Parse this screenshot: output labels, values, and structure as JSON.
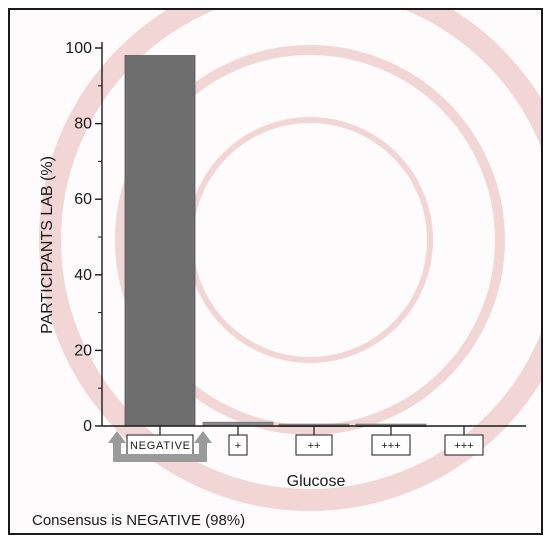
{
  "chart_data": {
    "type": "bar",
    "categories": [
      "NEGATIVE",
      "+",
      "++",
      "+++",
      "+++"
    ],
    "values": [
      98,
      1,
      0.5,
      0.5,
      0
    ],
    "ylabel": "PARTICIPANTS LAB (%)",
    "xlabel": "Glucose",
    "ylim": [
      0,
      100
    ],
    "yticks": [
      0,
      20,
      40,
      60,
      80,
      100
    ],
    "highlight_category": "NEGATIVE",
    "grid": false
  },
  "footer": {
    "consensus_text": "Consensus is NEGATIVE (98%)"
  },
  "colors": {
    "bar_highlight": "#6e6e6e",
    "bar_other": "#888888",
    "arrow": "#9a9a9a",
    "axis": "#1a1a1a",
    "watermark": "#f2d6d6"
  }
}
